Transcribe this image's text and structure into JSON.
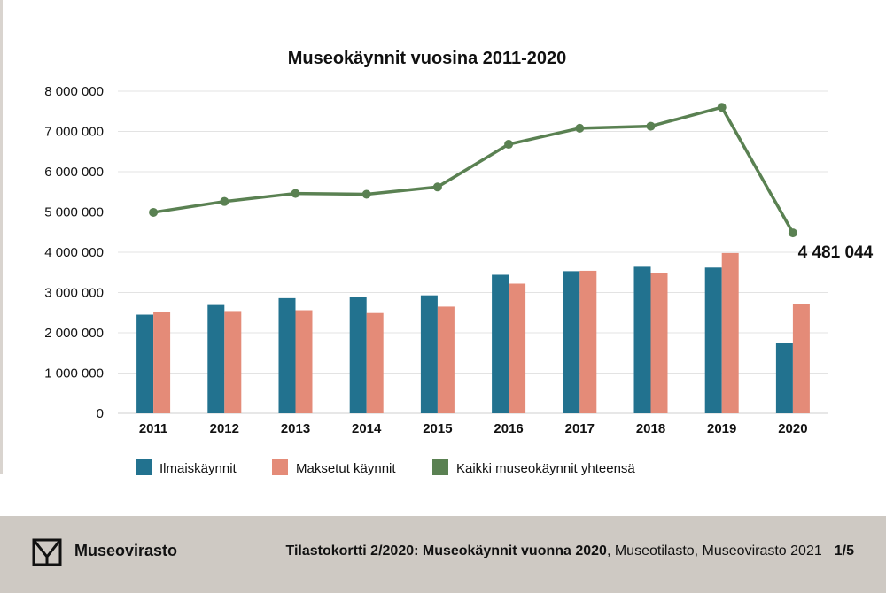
{
  "chart_data": {
    "type": "bar",
    "title": "Museokäynnit vuosina 2011-2020",
    "categories": [
      "2011",
      "2012",
      "2013",
      "2014",
      "2015",
      "2016",
      "2017",
      "2018",
      "2019",
      "2020"
    ],
    "ylim": [
      0,
      8000000
    ],
    "yticks": [
      0,
      1000000,
      2000000,
      3000000,
      4000000,
      5000000,
      6000000,
      7000000,
      8000000
    ],
    "ytick_labels": [
      "0",
      "1 000 000",
      "2 000 000",
      "3 000 000",
      "4 000 000",
      "5 000 000",
      "6 000 000",
      "7 000 000",
      "8 000 000"
    ],
    "grid": true,
    "legend_position": "bottom",
    "series": [
      {
        "name": "Ilmaiskäynnit",
        "kind": "bar",
        "color": "#22728f",
        "values": [
          2450000,
          2690000,
          2860000,
          2900000,
          2930000,
          3440000,
          3530000,
          3640000,
          3620000,
          1750000
        ]
      },
      {
        "name": "Maksetut käynnit",
        "kind": "bar",
        "color": "#e48b78",
        "values": [
          2520000,
          2540000,
          2560000,
          2490000,
          2650000,
          3220000,
          3540000,
          3480000,
          3980000,
          2710000
        ]
      },
      {
        "name": "Kaikki museokäynnit yhteensä",
        "kind": "line",
        "color": "#5a8152",
        "values": [
          4990000,
          5260000,
          5460000,
          5440000,
          5620000,
          6680000,
          7080000,
          7130000,
          7600000,
          4481044
        ]
      }
    ],
    "annotations": [
      {
        "category": "2020",
        "series": "Kaikki museokäynnit yhteensä",
        "text": "4 481 044"
      }
    ]
  },
  "footer": {
    "brand": "Museovirasto",
    "source_bold": "Tilastokortti 2/2020: Museokäynnit vuonna 2020",
    "source_rest": ", Museotilasto, Museovirasto 2021",
    "page": "1/5",
    "logo_icon": "museovirasto-logo-icon"
  }
}
